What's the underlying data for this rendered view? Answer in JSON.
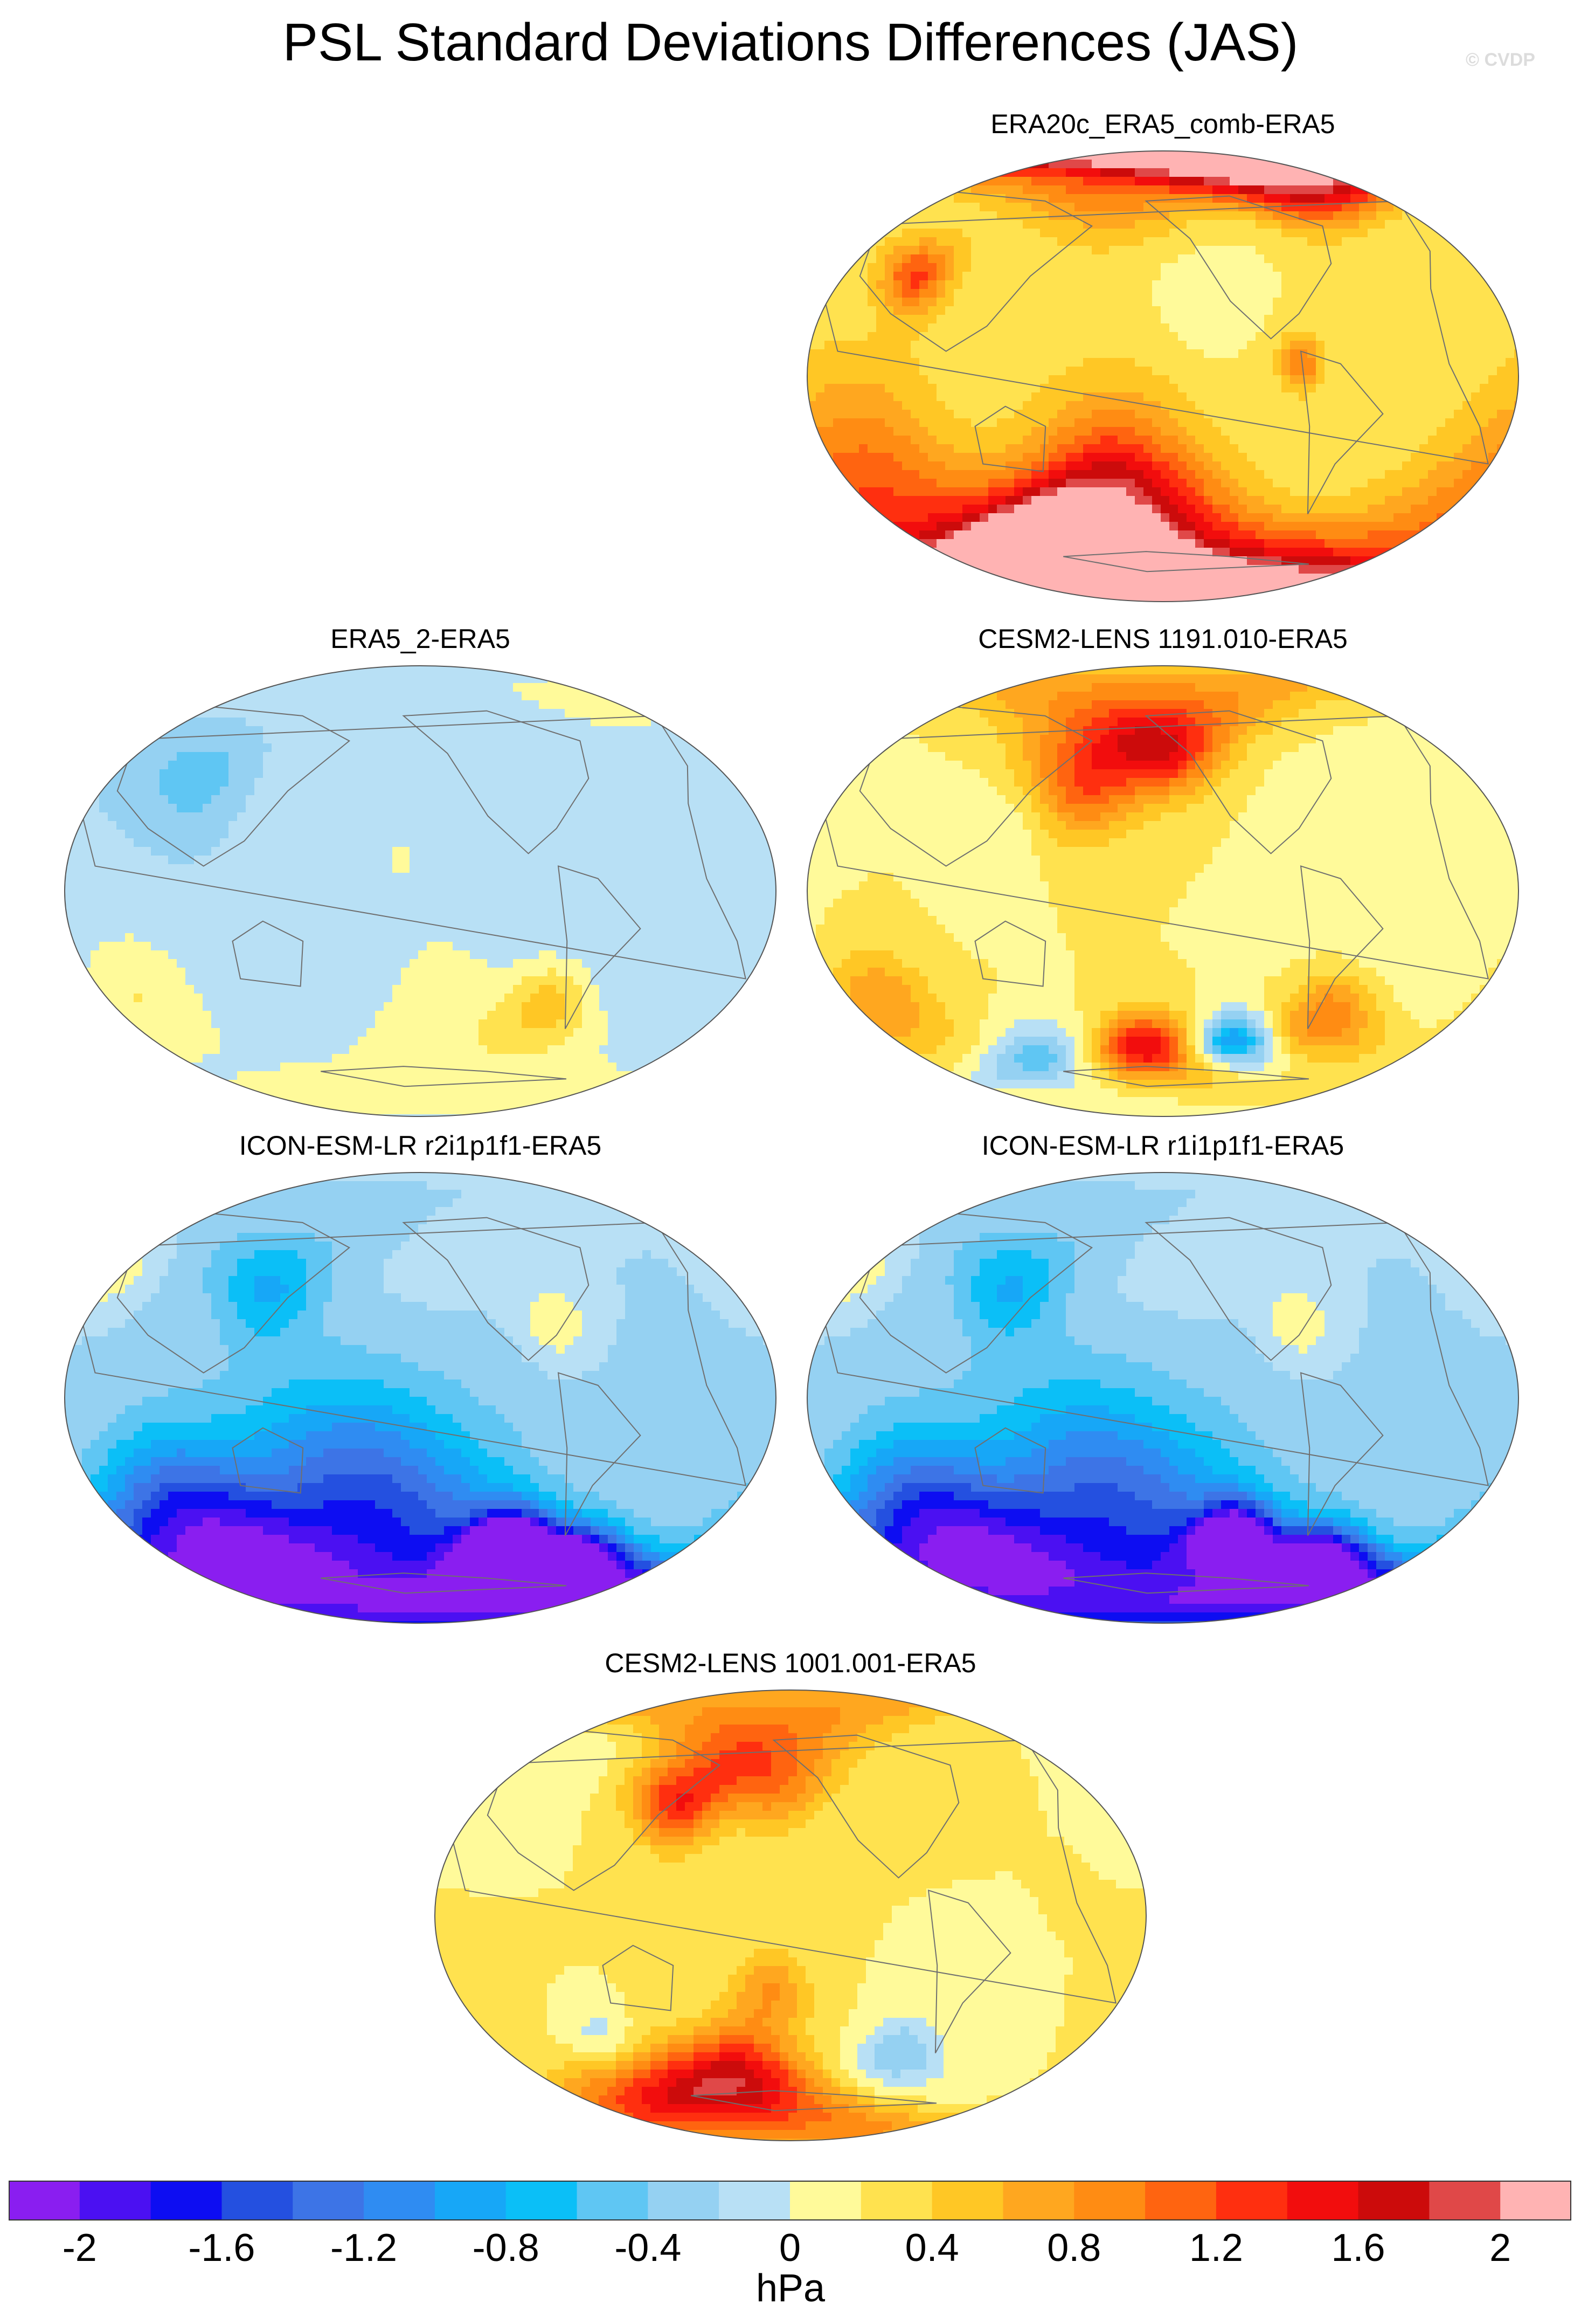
{
  "figure": {
    "title": "PSL Standard Deviations Differences (JAS)",
    "credit": "© CVDP",
    "units": "hPa"
  },
  "chart_data": {
    "type": "heatmap",
    "projection": "global map (Robinson-like), land outlines",
    "variable": "PSL standard deviation difference",
    "season": "JAS",
    "units": "hPa",
    "colorbar": {
      "levels": [
        -2.2,
        -2.0,
        -1.8,
        -1.6,
        -1.4,
        -1.2,
        -1.0,
        -0.8,
        -0.6,
        -0.4,
        -0.2,
        0.0,
        0.2,
        0.4,
        0.6,
        0.8,
        1.0,
        1.2,
        1.4,
        1.6,
        1.8,
        2.0,
        2.2
      ],
      "tick_values": [
        -2,
        -1.6,
        -1.2,
        -0.8,
        -0.4,
        0,
        0.4,
        0.8,
        1.2,
        1.6,
        2
      ],
      "tick_labels": [
        "-2",
        "-1.6",
        "-1.2",
        "-0.8",
        "-0.4",
        "0",
        "0.4",
        "0.8",
        "1.2",
        "1.6",
        "2"
      ],
      "colors": [
        "#8a1ef0",
        "#4b10f2",
        "#0d0df2",
        "#2450e0",
        "#3d74e6",
        "#2f8cf2",
        "#17a7f7",
        "#0bbff7",
        "#5fc6f3",
        "#95d1f2",
        "#b8e0f5",
        "#fffa9a",
        "#ffe24f",
        "#ffc725",
        "#ffa71f",
        "#ff8c13",
        "#ff6410",
        "#ff2f0f",
        "#f20d0d",
        "#cc0b0b",
        "#e04848",
        "#ffb3b3"
      ]
    },
    "panels": [
      {
        "id": "era20c",
        "title": "ERA20c_ERA5_comb-ERA5",
        "dominant": 0.2,
        "features": [
          {
            "lat": -72,
            "lon": 150,
            "value": 2.1,
            "spread": 14
          },
          {
            "lat": -62,
            "lon": 190,
            "value": 1.3,
            "spread": 30
          },
          {
            "lat": -58,
            "lon": 60,
            "value": 1.1,
            "spread": 40
          },
          {
            "lat": -45,
            "lon": 180,
            "value": 0.5,
            "spread": 20
          },
          {
            "lat": 85,
            "lon": 180,
            "value": 1.0,
            "spread": 18
          },
          {
            "lat": 78,
            "lon": 300,
            "value": 1.6,
            "spread": 12
          },
          {
            "lat": 40,
            "lon": 80,
            "value": 1.0,
            "spread": 10
          },
          {
            "lat": 5,
            "lon": 280,
            "value": 0.8,
            "spread": 8
          },
          {
            "lat": -25,
            "lon": 100,
            "value": -0.2,
            "spread": 22
          },
          {
            "lat": 30,
            "lon": 230,
            "value": -0.2,
            "spread": 15
          },
          {
            "lat": 0,
            "lon": 180,
            "value": 0.1,
            "spread": 40
          }
        ]
      },
      {
        "id": "era5_2",
        "title": "ERA5_2-ERA5",
        "dominant": -0.2,
        "features": [
          {
            "lat": -45,
            "lon": 280,
            "value": 0.6,
            "spread": 12
          },
          {
            "lat": -42,
            "lon": 60,
            "value": 0.4,
            "spread": 20
          },
          {
            "lat": 15,
            "lon": 200,
            "value": 0.2,
            "spread": 40
          },
          {
            "lat": -60,
            "lon": 230,
            "value": 0.3,
            "spread": 25
          },
          {
            "lat": 45,
            "lon": 90,
            "value": -0.4,
            "spread": 12
          },
          {
            "lat": 75,
            "lon": 330,
            "value": 0.2,
            "spread": 15
          }
        ]
      },
      {
        "id": "cesm_1191",
        "title": "CESM2-LENS 1191.010-ERA5",
        "dominant": 0.2,
        "features": [
          {
            "lat": 45,
            "lon": 170,
            "value": 1.0,
            "spread": 16
          },
          {
            "lat": 55,
            "lon": 215,
            "value": 0.8,
            "spread": 12
          },
          {
            "lat": -63,
            "lon": 200,
            "value": 1.4,
            "spread": 10
          },
          {
            "lat": -60,
            "lon": 250,
            "value": -1.2,
            "spread": 8
          },
          {
            "lat": -68,
            "lon": 140,
            "value": -0.8,
            "spread": 10
          },
          {
            "lat": -50,
            "lon": 300,
            "value": 0.8,
            "spread": 12
          },
          {
            "lat": -45,
            "lon": 60,
            "value": 0.6,
            "spread": 15
          },
          {
            "lat": 70,
            "lon": 200,
            "value": 0.6,
            "spread": 18
          },
          {
            "lat": 20,
            "lon": 120,
            "value": -0.2,
            "spread": 15
          },
          {
            "lat": 0,
            "lon": 330,
            "value": -0.2,
            "spread": 30
          }
        ]
      },
      {
        "id": "icon_r2",
        "title": "ICON-ESM-LR r2i1p1f1-ERA5",
        "dominant": -0.2,
        "features": [
          {
            "lat": -55,
            "lon": 180,
            "value": -1.5,
            "spread": 45
          },
          {
            "lat": -58,
            "lon": 260,
            "value": -1.8,
            "spread": 10
          },
          {
            "lat": -65,
            "lon": 300,
            "value": -1.6,
            "spread": 10
          },
          {
            "lat": -50,
            "lon": 80,
            "value": -1.2,
            "spread": 25
          },
          {
            "lat": 15,
            "lon": 200,
            "value": 0.2,
            "spread": 35
          },
          {
            "lat": 30,
            "lon": 280,
            "value": 0.4,
            "spread": 10
          },
          {
            "lat": 50,
            "lon": 40,
            "value": 0.4,
            "spread": 10
          },
          {
            "lat": 45,
            "lon": 130,
            "value": -0.6,
            "spread": 15
          }
        ]
      },
      {
        "id": "icon_r1",
        "title": "ICON-ESM-LR r1i1p1f1-ERA5",
        "dominant": -0.2,
        "features": [
          {
            "lat": -55,
            "lon": 180,
            "value": -1.4,
            "spread": 45
          },
          {
            "lat": -55,
            "lon": 250,
            "value": -1.6,
            "spread": 10
          },
          {
            "lat": -65,
            "lon": 300,
            "value": -1.7,
            "spread": 10
          },
          {
            "lat": -50,
            "lon": 80,
            "value": -1.2,
            "spread": 25
          },
          {
            "lat": 15,
            "lon": 200,
            "value": 0.2,
            "spread": 35
          },
          {
            "lat": 30,
            "lon": 280,
            "value": 0.4,
            "spread": 10
          },
          {
            "lat": 50,
            "lon": 40,
            "value": 0.4,
            "spread": 10
          },
          {
            "lat": 45,
            "lon": 130,
            "value": -0.6,
            "spread": 15
          }
        ]
      },
      {
        "id": "cesm_1001",
        "title": "CESM2-LENS 1001.001-ERA5",
        "dominant": 0.2,
        "features": [
          {
            "lat": 45,
            "lon": 150,
            "value": 1.2,
            "spread": 12
          },
          {
            "lat": 55,
            "lon": 200,
            "value": 0.8,
            "spread": 14
          },
          {
            "lat": -65,
            "lon": 180,
            "value": 1.4,
            "spread": 14
          },
          {
            "lat": -65,
            "lon": 120,
            "value": 0.8,
            "spread": 15
          },
          {
            "lat": -50,
            "lon": 110,
            "value": -0.6,
            "spread": 10
          },
          {
            "lat": -55,
            "lon": 270,
            "value": -0.6,
            "spread": 10
          },
          {
            "lat": -30,
            "lon": 200,
            "value": 0.6,
            "spread": 12
          },
          {
            "lat": 70,
            "lon": 100,
            "value": -0.2,
            "spread": 12
          },
          {
            "lat": 80,
            "lon": 180,
            "value": 0.6,
            "spread": 15
          }
        ]
      }
    ]
  }
}
